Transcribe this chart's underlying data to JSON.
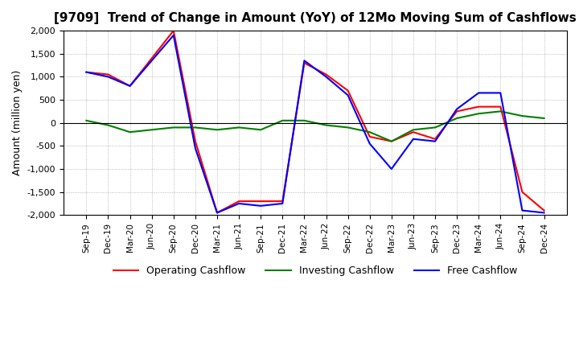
{
  "title": "[9709]  Trend of Change in Amount (YoY) of 12Mo Moving Sum of Cashflows",
  "ylabel": "Amount (million yen)",
  "ylim": [
    -2000,
    2000
  ],
  "yticks": [
    -2000,
    -1500,
    -1000,
    -500,
    0,
    500,
    1000,
    1500,
    2000
  ],
  "x_labels": [
    "Sep-19",
    "Dec-19",
    "Mar-20",
    "Jun-20",
    "Sep-20",
    "Dec-20",
    "Mar-21",
    "Jun-21",
    "Sep-21",
    "Dec-21",
    "Mar-22",
    "Jun-22",
    "Sep-22",
    "Dec-22",
    "Mar-23",
    "Jun-23",
    "Sep-23",
    "Dec-23",
    "Mar-24",
    "Jun-24",
    "Sep-24",
    "Dec-24"
  ],
  "operating": [
    1100,
    1050,
    800,
    1400,
    2000,
    -400,
    -1950,
    -1700,
    -1700,
    -1700,
    1300,
    1050,
    700,
    -300,
    -400,
    -200,
    -350,
    250,
    350,
    350,
    -1500,
    -1900
  ],
  "investing": [
    50,
    -50,
    -200,
    -150,
    -100,
    -100,
    -150,
    -100,
    -150,
    50,
    50,
    -50,
    -100,
    -200,
    -400,
    -150,
    -100,
    100,
    200,
    250,
    150,
    100
  ],
  "free": [
    1100,
    1000,
    800,
    1350,
    1900,
    -550,
    -1950,
    -1750,
    -1800,
    -1750,
    1350,
    1000,
    600,
    -450,
    -1000,
    -350,
    -400,
    300,
    650,
    650,
    -1900,
    -1950
  ],
  "operating_color": "#ff0000",
  "investing_color": "#008000",
  "free_color": "#0000ff",
  "background_color": "#ffffff",
  "grid_color": "#aaaaaa"
}
